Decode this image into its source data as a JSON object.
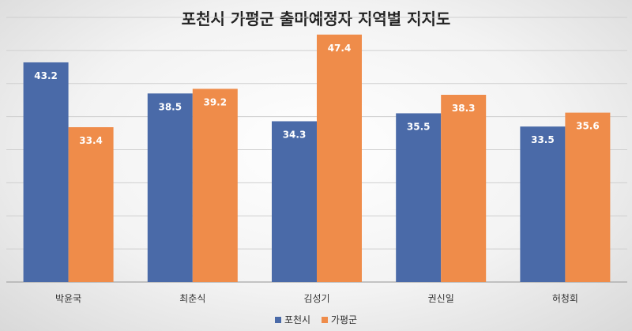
{
  "chart_data": {
    "type": "bar",
    "title": "포천시 가평군 출마예정자 지역별 지지도",
    "categories": [
      "박윤국",
      "최춘식",
      "김성기",
      "권신일",
      "허청회"
    ],
    "series": [
      {
        "name": "포천시",
        "values": [
          43.2,
          38.5,
          34.3,
          35.5,
          33.5
        ],
        "color": "#4a6aa8"
      },
      {
        "name": "가평군",
        "values": [
          33.4,
          39.2,
          47.4,
          38.3,
          35.6
        ],
        "color": "#ef8c4a"
      }
    ],
    "ylim": [
      10,
      50
    ],
    "gridlines": true,
    "legend_position": "bottom"
  }
}
